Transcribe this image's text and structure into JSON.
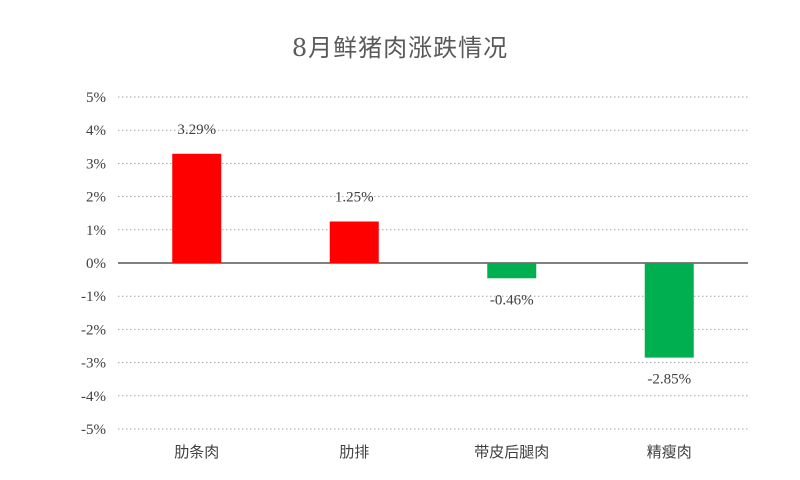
{
  "chart_data": {
    "type": "bar",
    "title": "8月鲜猪肉涨跌情况",
    "categories": [
      "肋条肉",
      "肋排",
      "带皮后腿肉",
      "精瘦肉"
    ],
    "values": [
      3.29,
      1.25,
      -0.46,
      -2.85
    ],
    "data_labels": [
      "3.29%",
      "1.25%",
      "-0.46%",
      "-2.85%"
    ],
    "y_ticks": [
      5,
      4,
      3,
      2,
      1,
      0,
      -1,
      -2,
      -3,
      -4,
      -5
    ],
    "y_tick_labels": [
      "5%",
      "4%",
      "3%",
      "2%",
      "1%",
      "0%",
      "-1%",
      "-2%",
      "-3%",
      "-4%",
      "-5%"
    ],
    "ylim": [
      -5,
      5
    ],
    "xlabel": "",
    "ylabel": "",
    "grid": true,
    "grid_style": "dotted",
    "colors": {
      "positive": "#ff0000",
      "negative": "#00b050",
      "grid": "#a6a6a6",
      "axis": "#000000",
      "text": "#404040"
    }
  }
}
